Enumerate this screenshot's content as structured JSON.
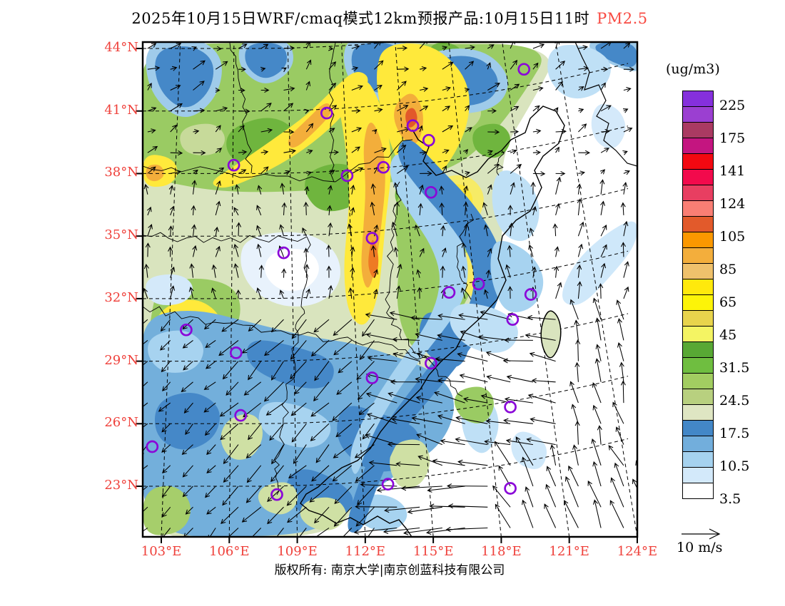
{
  "title": {
    "main": "2025年10月15日WRF/cmaq模式12km预报产品:10月15日11时",
    "highlight": "PM2.5",
    "highlight_color": "#f84a42"
  },
  "axes": {
    "label_color": "#ef413b",
    "x_labels": [
      "103°E",
      "106°E",
      "109°E",
      "112°E",
      "115°E",
      "118°E",
      "121°E",
      "124°E"
    ],
    "y_labels": [
      "44°N",
      "41°N",
      "38°N",
      "35°N",
      "32°N",
      "29°N",
      "26°N",
      "23°N"
    ]
  },
  "legend": {
    "unit": "(ug/m3)",
    "tick_labels": [
      "225",
      "175",
      "141",
      "124",
      "105",
      "85",
      "65",
      "45",
      "31.5",
      "24.5",
      "17.5",
      "10.5",
      "3.5"
    ],
    "colors_top_to_bottom": [
      "#8530dc",
      "#9b3fd1",
      "#aa3a62",
      "#c41580",
      "#f30811",
      "#f20a4c",
      "#e83e61",
      "#f97e74",
      "#e25a2b",
      "#fb9800",
      "#f3ae3c",
      "#efc16c",
      "#ffe90c",
      "#fdf408",
      "#e8d44c",
      "#f4f463",
      "#58a834",
      "#6fbe40",
      "#a2cd61",
      "#b8d07f",
      "#dfe6c3",
      "#4387c7",
      "#72aedc",
      "#a5d2ef",
      "#d3e9fa",
      "#ffffff"
    ]
  },
  "wind_scale": {
    "label": "10 m/s"
  },
  "footer": {
    "text": "版权所有: 南京大学|南京创蓝科技有限公司"
  },
  "chart_data": {
    "type": "heatmap",
    "title": "2025年10月15日WRF/cmaq模式12km预报产品:10月15日11时 PM2.5",
    "variable": "PM2.5",
    "unit": "ug/m3",
    "x": {
      "label_format": "°E",
      "ticks": [
        103,
        106,
        109,
        112,
        115,
        118,
        121,
        124
      ],
      "range": [
        102.2,
        124.0
      ]
    },
    "y": {
      "label_format": "°N",
      "ticks": [
        44,
        41,
        38,
        35,
        32,
        29,
        26,
        23
      ],
      "range": [
        20.6,
        44.3
      ]
    },
    "contour_levels": [
      3.5,
      10.5,
      17.5,
      24.5,
      31.5,
      45,
      65,
      85,
      105,
      124,
      141,
      175,
      225
    ],
    "grid": "dashed graticule every 3 degrees",
    "legend_position": "right",
    "wind_reference_ms": 10,
    "stations_lon_lat": [
      [
        119.0,
        43.0
      ],
      [
        110.3,
        40.9
      ],
      [
        114.1,
        40.3
      ],
      [
        114.8,
        39.6
      ],
      [
        112.8,
        38.3
      ],
      [
        111.2,
        37.9
      ],
      [
        106.2,
        38.4
      ],
      [
        114.9,
        37.1
      ],
      [
        112.3,
        34.9
      ],
      [
        108.4,
        34.2
      ],
      [
        115.7,
        32.3
      ],
      [
        117.0,
        32.7
      ],
      [
        119.3,
        32.2
      ],
      [
        118.5,
        31.0
      ],
      [
        114.9,
        28.9
      ],
      [
        118.4,
        26.8
      ],
      [
        104.1,
        30.5
      ],
      [
        106.3,
        29.4
      ],
      [
        106.5,
        26.4
      ],
      [
        102.6,
        24.9
      ],
      [
        108.1,
        22.6
      ],
      [
        112.3,
        28.2
      ],
      [
        113.0,
        23.1
      ],
      [
        118.4,
        22.9
      ]
    ],
    "pattern_summary": [
      "High PM2.5 (45-124 ug/m3, yellow-orange) band through North China Plain and central China around 110-114E, 31-41N",
      "Moderate values (green, 17.5-45) across most of northern China 38-44N with clean pockets",
      "Low values (blue, 3.5-17.5) over Sichuan-Guizhou-Guangxi in the southwest and along the Jiangsu-Fujian coast",
      "Clean air (<3.5, white) over the southeast ocean with strong easterly winds ~10 m/s"
    ]
  }
}
